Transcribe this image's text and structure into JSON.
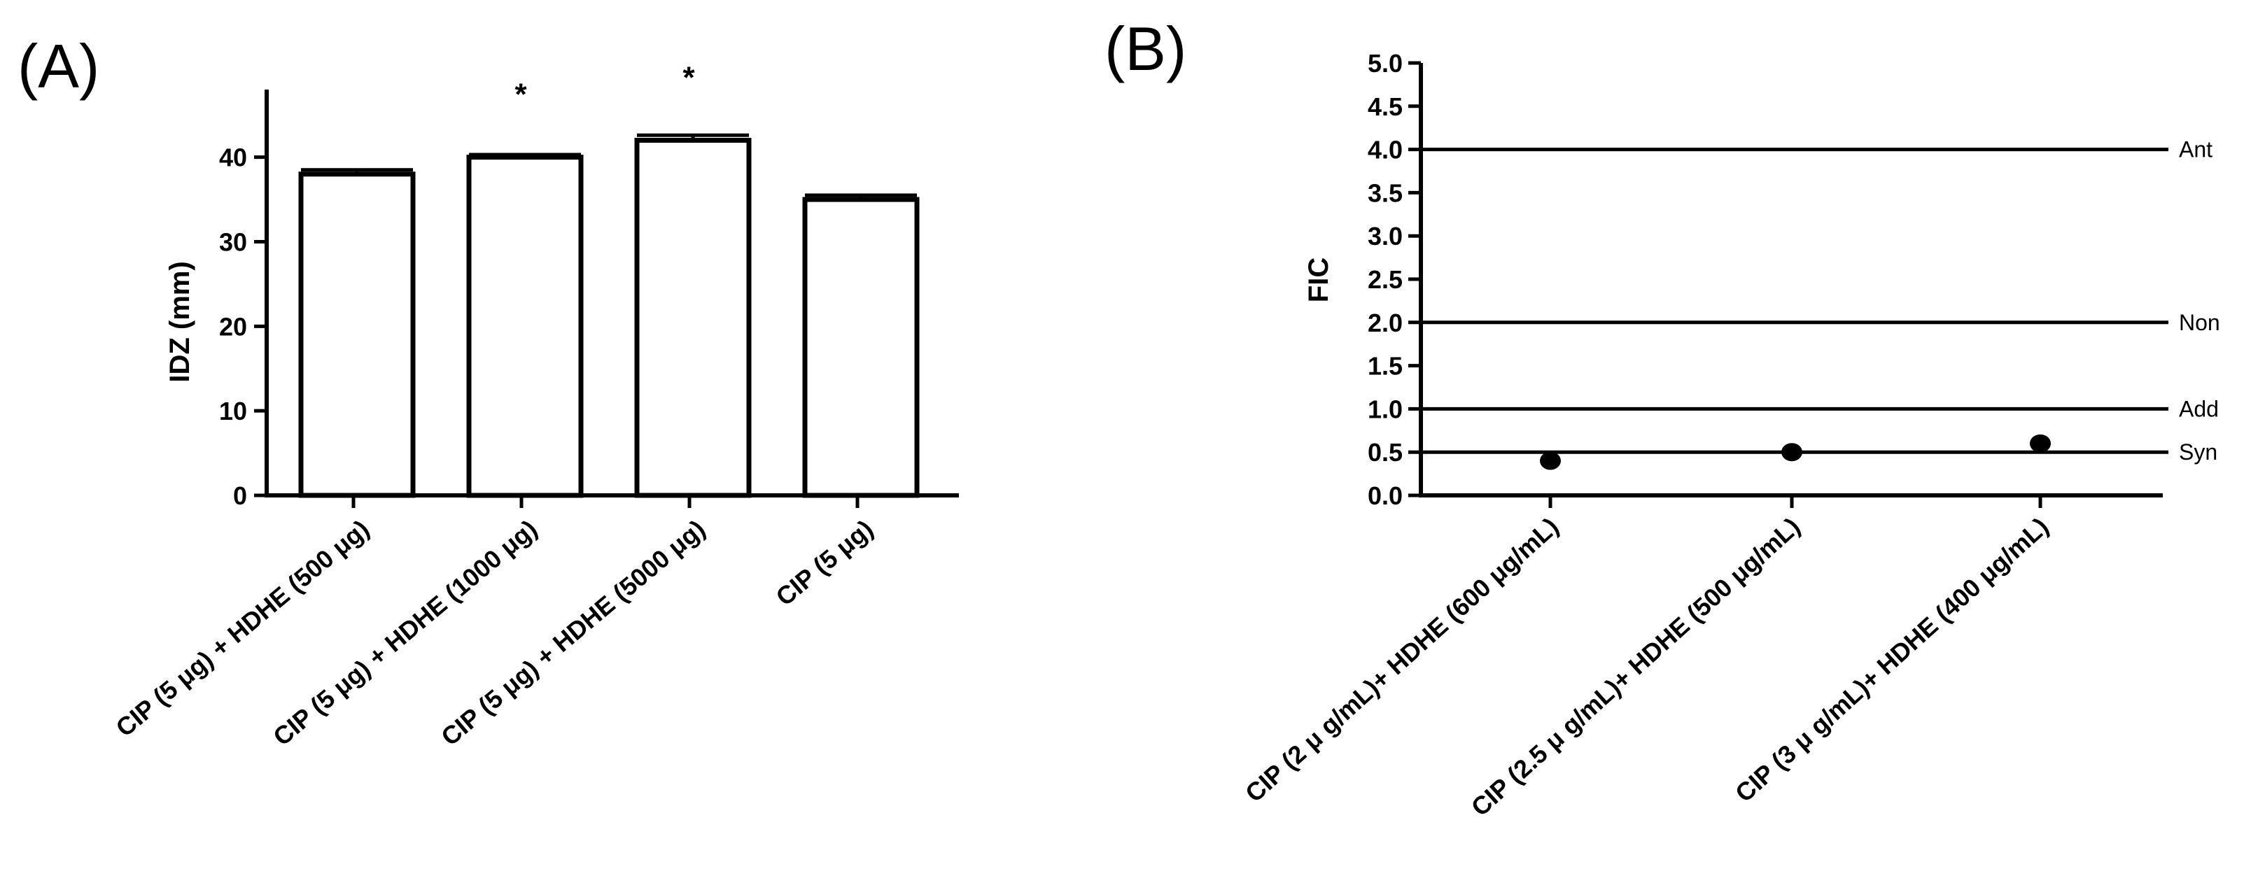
{
  "chart_data": [
    {
      "panel_label": "(A)",
      "type": "bar",
      "ylabel": "IDZ (mm)",
      "xlabel": "",
      "ylim": [
        0,
        48
      ],
      "yticks": [
        0,
        10,
        20,
        30,
        40
      ],
      "categories": [
        "CIP (5 μg) + HDHE (500 μg)",
        "CIP  (5 μg)  + HDHE  (1000 μg)",
        "CIP  (5 μg) + HDHE (5000 μg)",
        "CIP  (5 μg)"
      ],
      "values": [
        38,
        40,
        42,
        35
      ],
      "errors": [
        0.5,
        0.3,
        0.6,
        0.5
      ],
      "annotations": [
        "",
        "*",
        "*",
        ""
      ],
      "grid": false,
      "bar_color": "#ffffff",
      "edge_color": "#000000"
    },
    {
      "panel_label": "(B)",
      "type": "scatter",
      "ylabel": "FIC",
      "xlabel": "",
      "ylim": [
        0,
        5
      ],
      "yticks": [
        "0.0",
        "0.5",
        "1.0",
        "1.5",
        "2.0",
        "2.5",
        "3.0",
        "3.5",
        "4.0",
        "4.5",
        "5.0"
      ],
      "categories": [
        "CIP (2 μ g/mL)+ HDHE (600 μg/mL)",
        "CIP (2.5 μ g/mL)+ HDHE (500 μg/mL)",
        "CIP (3 μ g/mL)+ HDHE (400 μg/mL)"
      ],
      "values": [
        0.4,
        0.5,
        0.6
      ],
      "reference_lines": [
        {
          "label": "Ant",
          "y": 4.0
        },
        {
          "label": "Non",
          "y": 2.0
        },
        {
          "label": "Add",
          "y": 1.0
        },
        {
          "label": "Syn",
          "y": 0.5
        }
      ],
      "grid": false,
      "marker_color": "#000000"
    }
  ]
}
